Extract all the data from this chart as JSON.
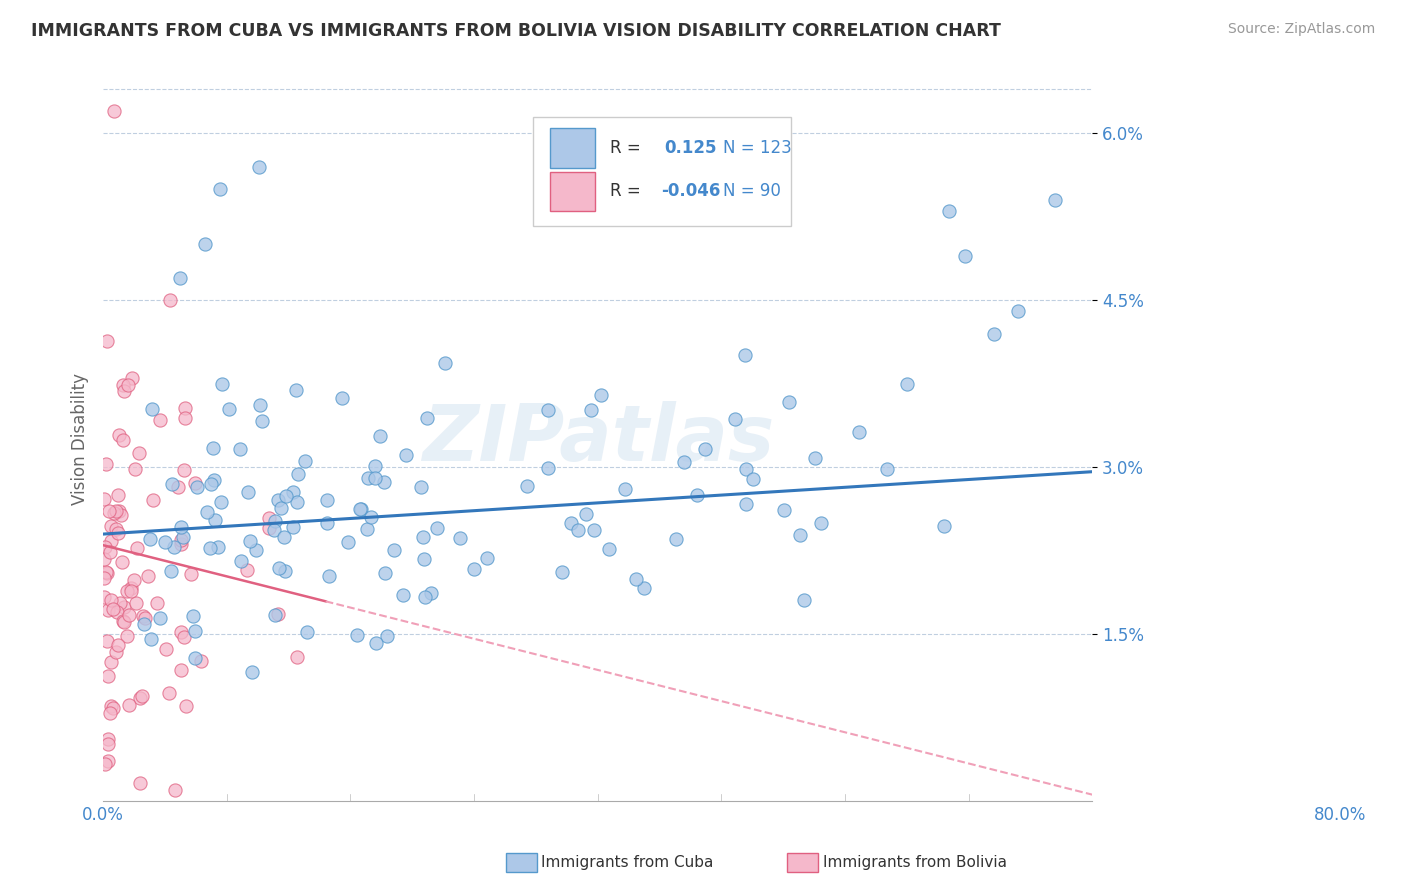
{
  "title": "IMMIGRANTS FROM CUBA VS IMMIGRANTS FROM BOLIVIA VISION DISABILITY CORRELATION CHART",
  "source": "Source: ZipAtlas.com",
  "ylabel": "Vision Disability",
  "xmin": 0.0,
  "xmax": 0.8,
  "ymin": 0.0,
  "ymax": 0.065,
  "cuba_R": 0.125,
  "cuba_N": 123,
  "bolivia_R": -0.046,
  "bolivia_N": 90,
  "cuba_color": "#adc8e8",
  "cuba_edge_color": "#5599cc",
  "bolivia_color": "#f5b8cb",
  "bolivia_edge_color": "#e06080",
  "cuba_line_color": "#3377bb",
  "bolivia_line_solid_color": "#e06080",
  "bolivia_line_dash_color": "#f0a0b8",
  "watermark": "ZIPatlas",
  "ytick_vals": [
    0.015,
    0.03,
    0.045,
    0.06
  ],
  "ytick_labels": [
    "1.5%",
    "3.0%",
    "4.5%",
    "6.0%"
  ]
}
